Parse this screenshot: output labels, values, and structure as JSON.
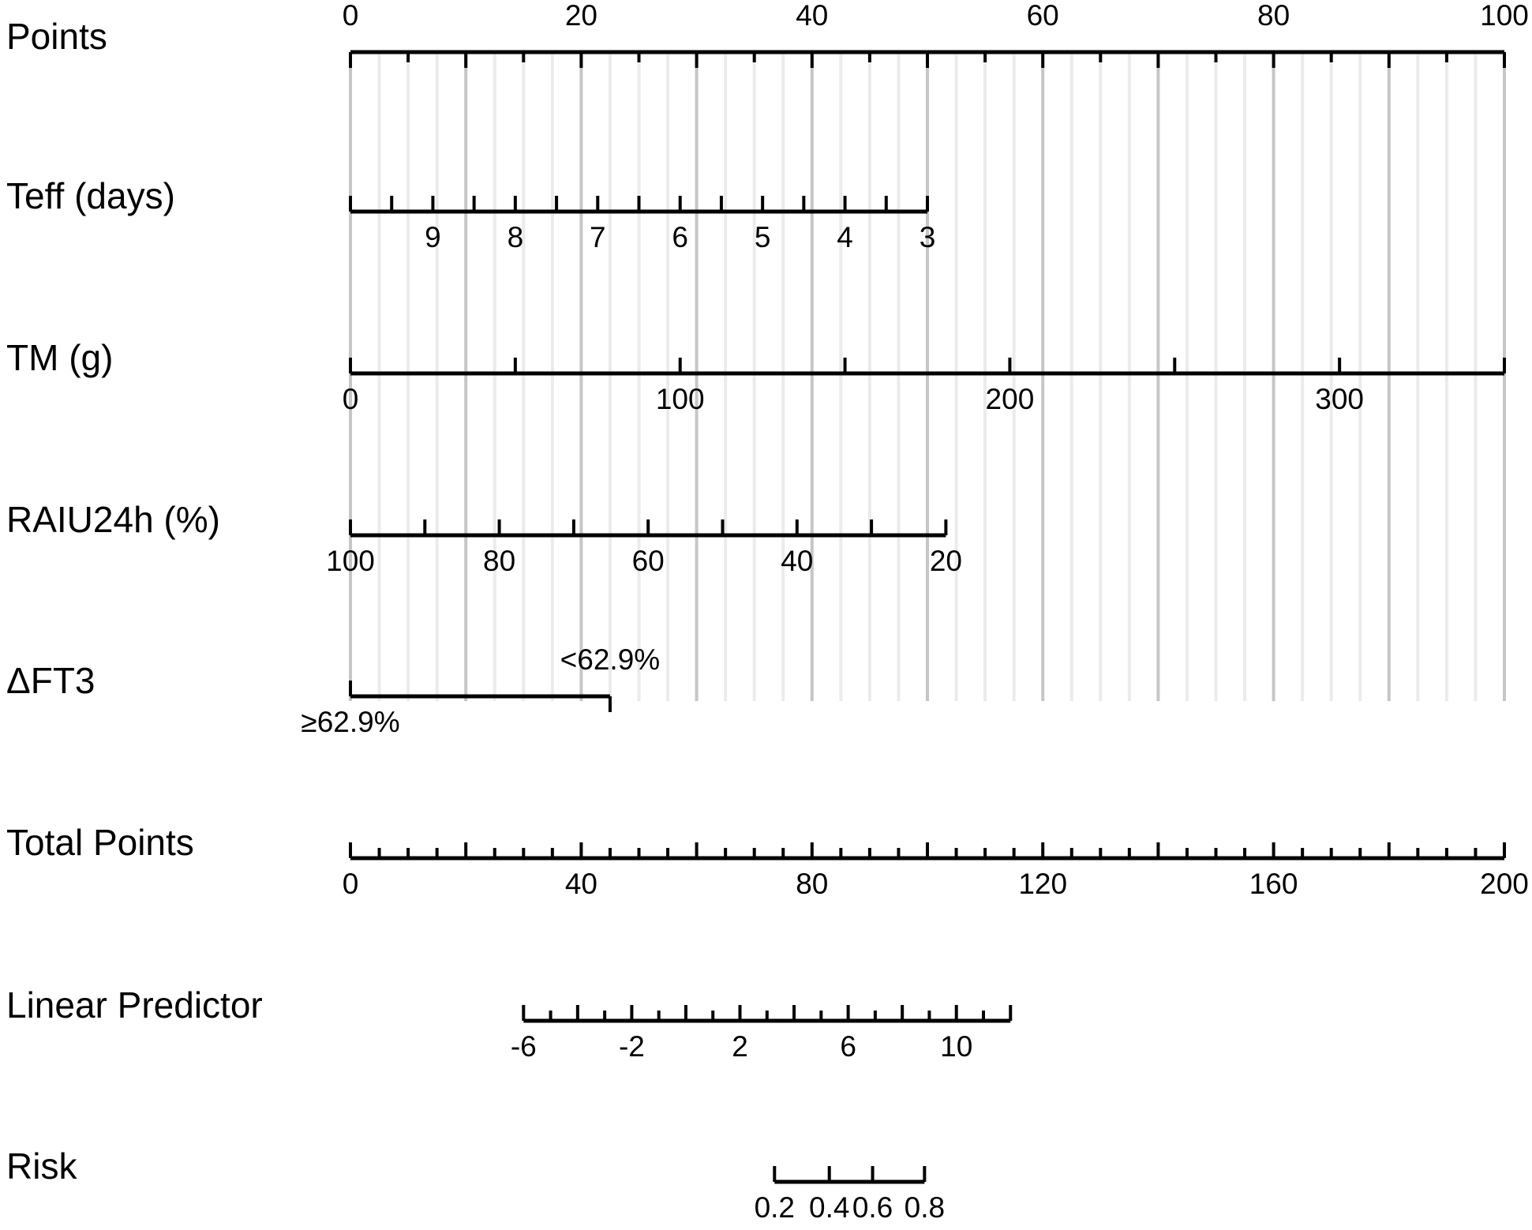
{
  "chart_data": {
    "type": "nomogram",
    "points_scale": {
      "min": 0,
      "max": 100
    },
    "rows": [
      {
        "id": "points",
        "label": "Points",
        "kind": "points",
        "ticks": [
          0,
          5,
          10,
          15,
          20,
          25,
          30,
          35,
          40,
          45,
          50,
          55,
          60,
          65,
          70,
          75,
          80,
          85,
          90,
          95,
          100
        ],
        "major_ticks": [
          0,
          10,
          20,
          30,
          40,
          50,
          60,
          70,
          80,
          90,
          100
        ],
        "tick_labels": [
          {
            "value": 0,
            "text": "0"
          },
          {
            "value": 20,
            "text": "20"
          },
          {
            "value": 40,
            "text": "40"
          },
          {
            "value": 60,
            "text": "60"
          },
          {
            "value": 80,
            "text": "80"
          },
          {
            "value": 100,
            "text": "100"
          }
        ],
        "label_position": "above"
      },
      {
        "id": "teff",
        "label": "Teff (days)",
        "kind": "variable",
        "value_points": [
          [
            10,
            0
          ],
          [
            3,
            50
          ]
        ],
        "ticks": [
          10,
          9.5,
          9,
          8.5,
          8,
          7.5,
          7,
          6.5,
          6,
          5.5,
          5,
          4.5,
          4,
          3.5,
          3
        ],
        "tick_labels": [
          {
            "value": 9,
            "text": "9"
          },
          {
            "value": 8,
            "text": "8"
          },
          {
            "value": 7,
            "text": "7"
          },
          {
            "value": 6,
            "text": "6"
          },
          {
            "value": 5,
            "text": "5"
          },
          {
            "value": 4,
            "text": "4"
          },
          {
            "value": 3,
            "text": "3"
          }
        ],
        "label_position": "below"
      },
      {
        "id": "tm",
        "label": "TM (g)",
        "kind": "variable",
        "value_points": [
          [
            0,
            0
          ],
          [
            350,
            100
          ]
        ],
        "ticks": [
          0,
          50,
          100,
          150,
          200,
          250,
          300,
          350
        ],
        "tick_labels": [
          {
            "value": 0,
            "text": "0"
          },
          {
            "value": 100,
            "text": "100"
          },
          {
            "value": 200,
            "text": "200"
          },
          {
            "value": 300,
            "text": "300"
          }
        ],
        "label_position": "below"
      },
      {
        "id": "raiu",
        "label": "RAIU24h (%)",
        "kind": "variable",
        "value_points": [
          [
            100,
            0
          ],
          [
            20,
            51.6
          ]
        ],
        "ticks": [
          100,
          90,
          80,
          70,
          60,
          50,
          40,
          30,
          20
        ],
        "tick_labels": [
          {
            "value": 100,
            "text": "100"
          },
          {
            "value": 80,
            "text": "80"
          },
          {
            "value": 60,
            "text": "60"
          },
          {
            "value": 40,
            "text": "40"
          },
          {
            "value": 20,
            "text": "20"
          }
        ],
        "label_position": "below"
      },
      {
        "id": "dft3",
        "label": "ΔFT3",
        "kind": "categorical",
        "categories": [
          {
            "text": "≥62.9%",
            "points": 0,
            "label_position": "below"
          },
          {
            "text": "<62.9%",
            "points": 22.5,
            "label_position": "above"
          }
        ]
      },
      {
        "id": "total",
        "label": "Total Points",
        "kind": "total",
        "value_points": [
          [
            0,
            0
          ],
          [
            200,
            100
          ]
        ],
        "ticks": [
          0,
          5,
          10,
          15,
          20,
          25,
          30,
          35,
          40,
          45,
          50,
          55,
          60,
          65,
          70,
          75,
          80,
          85,
          90,
          95,
          100,
          105,
          110,
          115,
          120,
          125,
          130,
          135,
          140,
          145,
          150,
          155,
          160,
          165,
          170,
          175,
          180,
          185,
          190,
          195,
          200
        ],
        "major_ticks": [
          0,
          20,
          40,
          60,
          80,
          100,
          120,
          140,
          160,
          180,
          200
        ],
        "tick_labels": [
          {
            "value": 0,
            "text": "0"
          },
          {
            "value": 40,
            "text": "40"
          },
          {
            "value": 80,
            "text": "80"
          },
          {
            "value": 120,
            "text": "120"
          },
          {
            "value": 160,
            "text": "160"
          },
          {
            "value": 200,
            "text": "200"
          }
        ],
        "label_position": "below"
      },
      {
        "id": "lp",
        "label": "Linear Predictor",
        "kind": "total",
        "value_points": [
          [
            -6,
            30
          ],
          [
            12,
            114.4
          ]
        ],
        "ticks": [
          -6,
          -5,
          -4,
          -3,
          -2,
          -1,
          0,
          1,
          2,
          3,
          4,
          5,
          6,
          7,
          8,
          9,
          10,
          11,
          12
        ],
        "major_ticks": [
          -6,
          -4,
          -2,
          0,
          2,
          4,
          6,
          8,
          10,
          12
        ],
        "tick_labels": [
          {
            "value": -6,
            "text": "-6"
          },
          {
            "value": -2,
            "text": "-2"
          },
          {
            "value": 2,
            "text": "2"
          },
          {
            "value": 6,
            "text": "6"
          },
          {
            "value": 10,
            "text": "10"
          }
        ],
        "label_position": "below"
      },
      {
        "id": "risk",
        "label": "Risk",
        "kind": "total",
        "ticks": [
          {
            "value": 0.2,
            "total": 73.5
          },
          {
            "value": 0.4,
            "total": 83.0
          },
          {
            "value": 0.6,
            "total": 90.5
          },
          {
            "value": 0.8,
            "total": 99.5
          }
        ],
        "tick_labels": [
          {
            "value": 0.2,
            "text": "0.2"
          },
          {
            "value": 0.4,
            "text": "0.4"
          },
          {
            "value": 0.6,
            "text": "0.6"
          },
          {
            "value": 0.8,
            "text": "0.8"
          }
        ],
        "label_position": "below"
      }
    ],
    "grid": true
  }
}
